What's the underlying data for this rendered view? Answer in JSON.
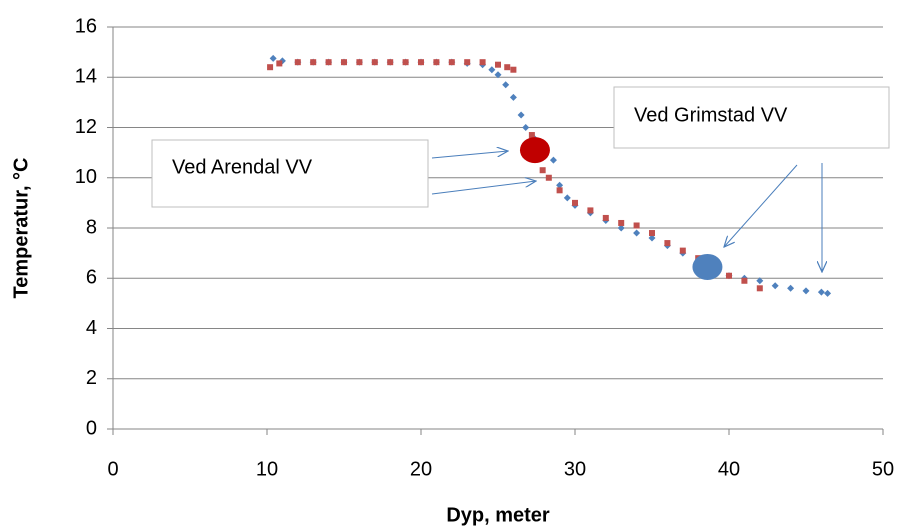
{
  "chart_data": {
    "type": "scatter",
    "xlabel": "Dyp, meter",
    "ylabel": "Temperatur, °C",
    "xlim": [
      0,
      50
    ],
    "ylim": [
      0,
      16
    ],
    "xticks": [
      0,
      10,
      20,
      30,
      40,
      50
    ],
    "yticks": [
      0,
      2,
      4,
      6,
      8,
      10,
      12,
      14,
      16
    ],
    "grid": true,
    "series": [
      {
        "color": "#4f81bd",
        "marker": "diamond",
        "x": [
          10.4,
          11,
          12,
          13,
          14,
          15,
          16,
          17,
          18,
          19,
          20,
          21,
          22,
          23,
          24,
          24.6,
          25,
          25.5,
          26,
          26.5,
          26.8,
          27.3,
          28,
          28.6,
          29,
          29.5,
          30,
          31,
          32,
          33,
          34,
          35,
          36,
          37,
          38,
          39,
          40,
          41,
          42,
          43,
          44,
          45,
          46,
          46.4
        ],
        "values": [
          14.75,
          14.65,
          14.6,
          14.6,
          14.6,
          14.6,
          14.6,
          14.6,
          14.6,
          14.6,
          14.6,
          14.6,
          14.6,
          14.55,
          14.5,
          14.3,
          14.1,
          13.7,
          13.2,
          12.5,
          12.0,
          11.6,
          11.2,
          10.7,
          9.7,
          9.2,
          8.9,
          8.6,
          8.3,
          8.0,
          7.8,
          7.6,
          7.3,
          7.0,
          6.7,
          6.3,
          6.1,
          6.0,
          5.9,
          5.7,
          5.6,
          5.5,
          5.45,
          5.4
        ]
      },
      {
        "color": "#c0504d",
        "marker": "square",
        "x": [
          10.2,
          10.8,
          12,
          13,
          14,
          15,
          16,
          17,
          18,
          19,
          20,
          21,
          22,
          23,
          24,
          25,
          25.6,
          26,
          27.2,
          27.6,
          27.9,
          28.3,
          29,
          30,
          31,
          32,
          33,
          34,
          35,
          36,
          37,
          38,
          39,
          40,
          41,
          42
        ],
        "values": [
          14.4,
          14.55,
          14.6,
          14.6,
          14.6,
          14.6,
          14.6,
          14.6,
          14.6,
          14.6,
          14.6,
          14.6,
          14.6,
          14.6,
          14.6,
          14.5,
          14.4,
          14.3,
          11.7,
          11.0,
          10.3,
          10.0,
          9.5,
          9.0,
          8.7,
          8.4,
          8.2,
          8.1,
          7.8,
          7.4,
          7.1,
          6.8,
          6.3,
          6.1,
          5.9,
          5.6
        ]
      },
      {
        "color": "#c00000",
        "marker": "circle",
        "x": [
          27.4
        ],
        "values": [
          11.1
        ]
      },
      {
        "color": "#4f81bd",
        "marker": "circle",
        "x": [
          38.6
        ],
        "values": [
          6.45
        ]
      }
    ],
    "annotations": [
      {
        "text": "Ved Arendal VV"
      },
      {
        "text": "Ved Grimstad VV"
      }
    ]
  }
}
